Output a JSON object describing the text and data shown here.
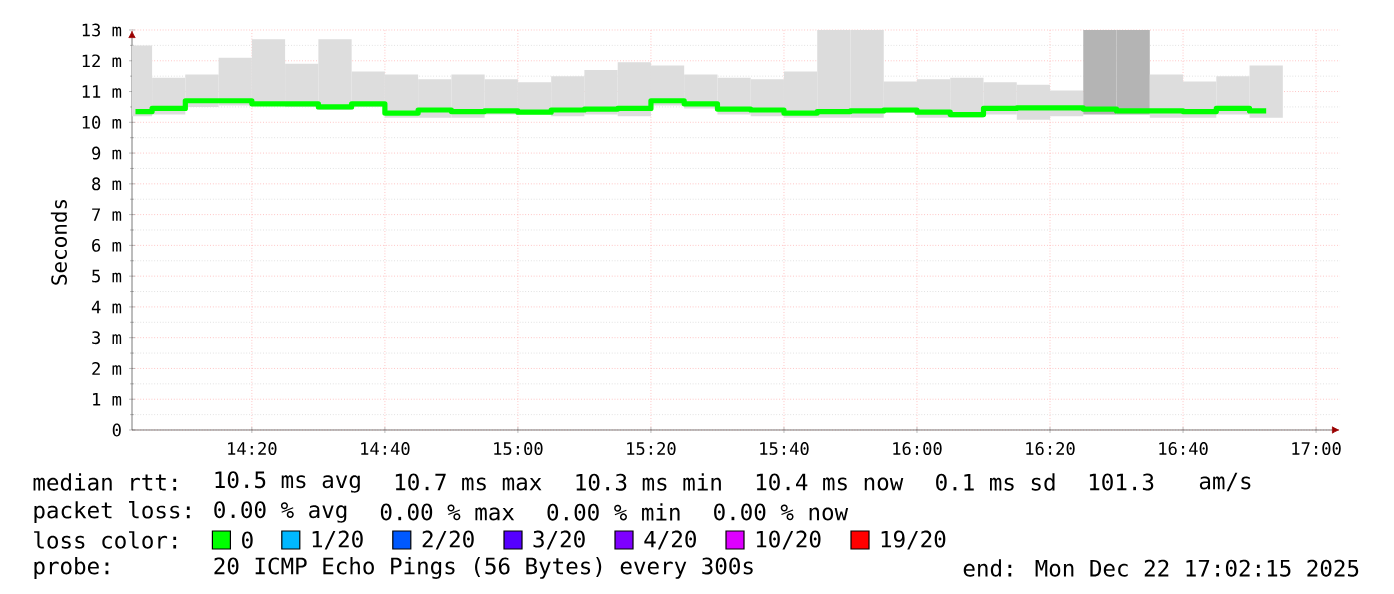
{
  "chart_data": {
    "type": "bar",
    "ylabel": "Seconds",
    "x": [
      14.0417,
      14.125,
      14.2083,
      14.2917,
      14.375,
      14.4583,
      14.5417,
      14.625,
      14.7083,
      14.7917,
      14.875,
      14.9583,
      15.0417,
      15.125,
      15.2083,
      15.2917,
      15.375,
      15.4583,
      15.5417,
      15.625,
      15.7083,
      15.7917,
      15.875,
      15.9583,
      16.0417,
      16.125,
      16.2083,
      16.2917,
      16.375,
      16.4583,
      16.5417,
      16.625,
      16.7083,
      16.7917,
      16.875
    ],
    "series": [
      {
        "color": "#dddddd",
        "colors": [
          "#dddddd",
          "#dddddd",
          "#dddddd",
          "#dddddd",
          "#dddddd",
          "#dddddd",
          "#dddddd",
          "#dddddd",
          "#dddddd",
          "#dddddd",
          "#dddddd",
          "#dddddd",
          "#dddddd",
          "#dddddd",
          "#dddddd",
          "#dddddd",
          "#dddddd",
          "#dddddd",
          "#dddddd",
          "#dddddd",
          "#dddddd",
          "#dcdcdc",
          "#dcdcdc",
          "#dddddd",
          "#dddddd",
          "#dddddd",
          "#dddddd",
          "#dddddd",
          "#dddddd",
          "#b4b4b4",
          "#b4b4b4",
          "#dddddd",
          "#dddddd",
          "#dddddd",
          "#dddddd"
        ],
        "base": [
          10.2,
          10.25,
          10.5,
          10.55,
          10.55,
          10.5,
          10.4,
          10.5,
          10.15,
          10.15,
          10.15,
          10.25,
          10.25,
          10.2,
          10.25,
          10.2,
          10.55,
          10.45,
          10.25,
          10.2,
          10.15,
          10.15,
          10.15,
          10.3,
          10.15,
          10.15,
          10.25,
          10.08,
          10.2,
          10.25,
          10.25,
          10.15,
          10.15,
          10.25,
          10.15
        ],
        "values": [
          2.3,
          1.2,
          1.05,
          1.55,
          2.15,
          1.4,
          2.3,
          1.15,
          1.4,
          1.25,
          1.4,
          1.15,
          1.05,
          1.3,
          1.45,
          1.75,
          1.3,
          1.1,
          1.2,
          1.2,
          1.5,
          2.85,
          2.85,
          1.03,
          1.25,
          1.3,
          1.05,
          1.14,
          0.83,
          2.75,
          2.75,
          1.4,
          1.18,
          1.25,
          1.7
        ]
      },
      {
        "type": "step",
        "color": "#00ff00",
        "values": [
          10.35,
          10.45,
          10.7,
          10.7,
          10.6,
          10.6,
          10.5,
          10.6,
          10.3,
          10.4,
          10.35,
          10.37,
          10.33,
          10.4,
          10.43,
          10.45,
          10.7,
          10.6,
          10.43,
          10.4,
          10.3,
          10.35,
          10.37,
          10.4,
          10.33,
          10.25,
          10.45,
          10.47,
          10.47,
          10.43,
          10.37,
          10.37,
          10.35,
          10.45,
          10.37
        ]
      }
    ],
    "xlim": [
      14.033,
      17.06
    ],
    "xticks": [
      {
        "value": 14.3333,
        "label": "14:20"
      },
      {
        "value": 14.6667,
        "label": "14:40"
      },
      {
        "value": 15,
        "label": "15:00"
      },
      {
        "value": 15.3333,
        "label": "15:20"
      },
      {
        "value": 15.6667,
        "label": "15:40"
      },
      {
        "value": 16,
        "label": "16:00"
      },
      {
        "value": 16.3333,
        "label": "16:20"
      },
      {
        "value": 16.6667,
        "label": "16:40"
      },
      {
        "value": 17,
        "label": "17:00"
      }
    ],
    "ylim": [
      0,
      13
    ],
    "yticks": [
      0,
      {
        "value": 1,
        "label": "1 m"
      },
      {
        "value": 2,
        "label": "2 m"
      },
      {
        "value": 3,
        "label": "3 m"
      },
      {
        "value": 4,
        "label": "4 m"
      },
      {
        "value": 5,
        "label": "5 m"
      },
      {
        "value": 6,
        "label": "6 m"
      },
      {
        "value": 7,
        "label": "7 m"
      },
      {
        "value": 8,
        "label": "8 m"
      },
      {
        "value": 9,
        "label": "9 m"
      },
      {
        "value": 10,
        "label": "10 m"
      },
      {
        "value": 11,
        "label": "11 m"
      },
      {
        "value": 12,
        "label": "12 m"
      },
      {
        "value": 13,
        "label": "13 m"
      }
    ],
    "grid": true,
    "annotations": [
      "median rtt:",
      "10.5 ms avg",
      "10.7 ms max",
      "10.3 ms min",
      "10.4 ms now",
      "0.1 ms sd",
      "101.3",
      "am/s",
      "packet loss:",
      "0.00 % avg",
      "0.00 % max",
      "0.00 % min",
      "0.00 % now",
      "loss color:",
      "0",
      "1/20",
      "2/20",
      "3/20",
      "4/20",
      "10/20",
      "19/20",
      "probe:",
      "20 ICMP Echo Pings (56 Bytes) every 300s",
      "end: Mon Dec 22 17:02:15 2025"
    ]
  }
}
